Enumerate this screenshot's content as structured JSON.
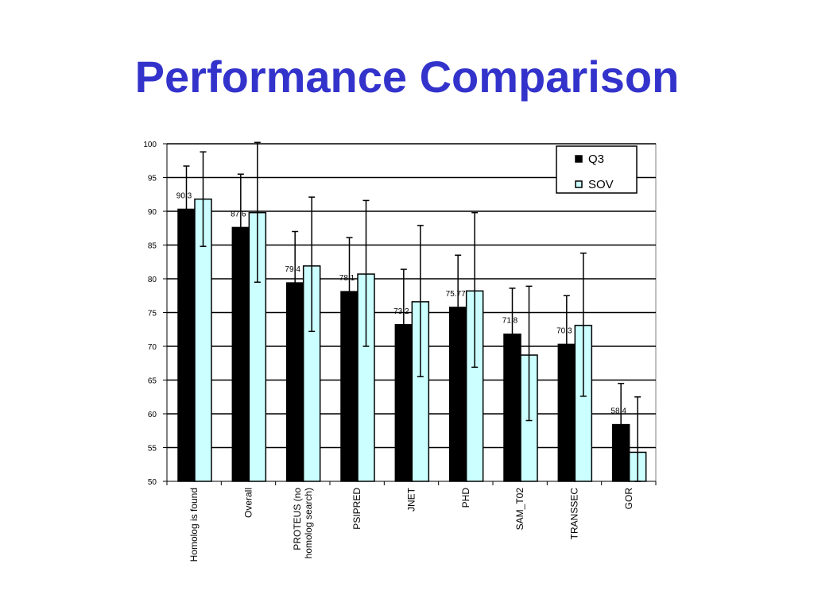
{
  "slide": {
    "title": "Performance Comparison"
  },
  "colors": {
    "title": "#3333cc",
    "q3": "#000000",
    "sov": "#ccffff",
    "gridline": "#000000",
    "plot_border": "#808080"
  },
  "chart_data": {
    "type": "bar",
    "title": "",
    "xlabel": "",
    "ylabel": "",
    "ylim": [
      50,
      100
    ],
    "yticks": [
      50,
      55,
      60,
      65,
      70,
      75,
      80,
      85,
      90,
      95,
      100
    ],
    "grid": true,
    "legend_position": "top-right",
    "categories": [
      [
        "Homolog is found"
      ],
      [
        "Overall"
      ],
      [
        "PROTEUS (no",
        "homolog search)"
      ],
      [
        "PSIPRED"
      ],
      [
        "JNET"
      ],
      [
        "PHD"
      ],
      [
        "SAM_T02"
      ],
      [
        "TRANSSEC"
      ],
      [
        "GOR"
      ]
    ],
    "series": [
      {
        "name": "Q3",
        "color": "#000000",
        "values": [
          90.3,
          87.6,
          79.4,
          78.1,
          73.2,
          75.77,
          71.8,
          70.3,
          58.4
        ],
        "data_labels": [
          "90.3",
          "87.6",
          "79.4",
          "78.1",
          "73.2",
          "75.77",
          "71.8",
          "70.3",
          "58.4"
        ],
        "error_low": [
          84.7,
          79.6,
          71.8,
          70.1,
          65.4,
          67.9,
          63.6,
          62.6,
          52.3
        ],
        "error_high": [
          96.7,
          95.5,
          87.0,
          86.1,
          81.4,
          83.5,
          78.6,
          77.5,
          64.5
        ]
      },
      {
        "name": "SOV",
        "color": "#ccffff",
        "values": [
          91.8,
          89.8,
          81.9,
          80.7,
          76.6,
          78.2,
          68.7,
          73.1,
          54.3
        ],
        "error_low": [
          84.8,
          79.5,
          72.2,
          70.0,
          65.5,
          66.9,
          59.0,
          62.6,
          50.0
        ],
        "error_high": [
          98.8,
          100.2,
          92.1,
          91.6,
          87.9,
          89.8,
          78.9,
          83.8,
          62.5
        ]
      }
    ]
  }
}
